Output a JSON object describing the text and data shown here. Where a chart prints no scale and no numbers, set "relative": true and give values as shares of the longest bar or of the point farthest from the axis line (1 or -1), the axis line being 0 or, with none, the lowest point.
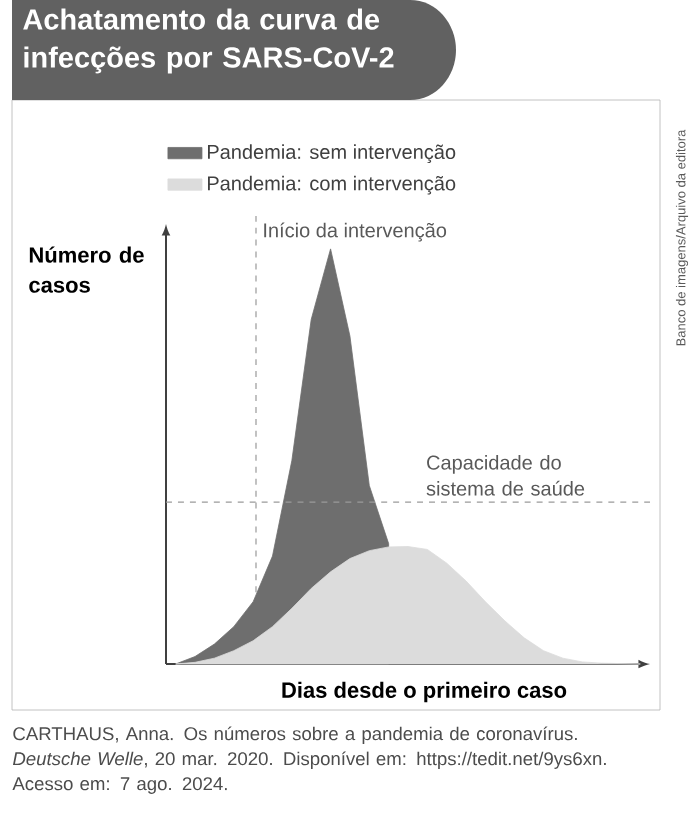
{
  "chart_data": {
    "type": "area",
    "title": "Achatamento da curva de infecções por SARS-CoV-2",
    "xlabel": "Dias desde o primeiro caso",
    "ylabel": "Número de casos",
    "relative": true,
    "tick_labels": false,
    "legend": "top",
    "categories": [
      null,
      null,
      null,
      null,
      null,
      null,
      null,
      null,
      null,
      null,
      null,
      null,
      null,
      null,
      null,
      null,
      null,
      null,
      null,
      null,
      null,
      null,
      null,
      null,
      null
    ],
    "series": [
      {
        "name": "Pandemia: sem intervenção",
        "color": "#6e6e6e",
        "values": [
          0,
          0.018,
          0.048,
          0.09,
          0.15,
          0.26,
          0.49,
          0.83,
          1,
          0.79,
          0.43,
          0.29,
          null,
          null,
          null,
          null,
          null,
          null,
          null,
          null,
          null,
          null,
          null,
          null,
          null
        ]
      },
      {
        "name": "Pandemia: com intervenção",
        "color": "#dcdcdc",
        "values": [
          0,
          0.004,
          0.014,
          0.032,
          0.056,
          0.09,
          0.134,
          0.182,
          0.222,
          0.254,
          0.273,
          0.282,
          0.283,
          0.276,
          0.243,
          0.2,
          0.15,
          0.104,
          0.063,
          0.032,
          0.014,
          0.005,
          0.002,
          0.001,
          0
        ]
      }
    ],
    "ref_lines": [
      {
        "axis": "y",
        "value": 0.39,
        "label": "Capacidade do sistema de saúde",
        "color": "#9a9a9a",
        "line_style": "dashed"
      }
    ],
    "annotations": [
      "Início da intervenção",
      "Banco de imagens/Arquivo da editora",
      "CARTHAUS, Anna. Os números sobre a pandemia de coronavírus. *Deutsche Welle*, 20 mar. 2020. Disponível em: https://tedit.net/9ys6xn. Acesso em: 7 ago. 2024."
    ]
  }
}
